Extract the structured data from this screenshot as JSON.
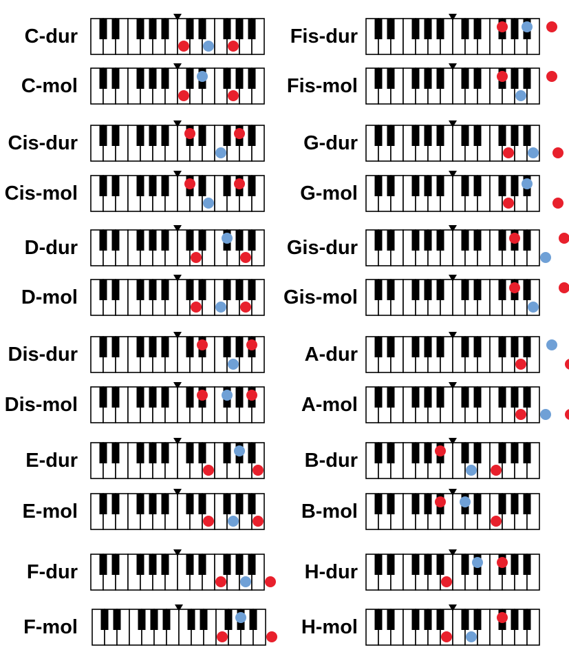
{
  "title": "",
  "colors": {
    "root_fifth": "#e8202c",
    "third": "#6fa0d6",
    "white_key": "#ffffff",
    "black_key": "#000000",
    "outline": "#000000"
  },
  "keyboard": {
    "white_keys": [
      "C",
      "D",
      "E",
      "F",
      "G",
      "A",
      "H",
      "C",
      "D",
      "E",
      "F",
      "G",
      "A",
      "H"
    ],
    "marker_icon": "middle-c-triangle-icon",
    "middle_c_index": 7
  },
  "chords": [
    {
      "label": "C-dur",
      "notes": [
        {
          "key": "C1",
          "role": "root"
        },
        {
          "key": "E1",
          "role": "third"
        },
        {
          "key": "G1",
          "role": "fifth"
        }
      ]
    },
    {
      "label": "C-mol",
      "notes": [
        {
          "key": "C1",
          "role": "root"
        },
        {
          "key": "Dis1",
          "role": "third"
        },
        {
          "key": "G1",
          "role": "fifth"
        }
      ]
    },
    {
      "label": "Cis-dur",
      "notes": [
        {
          "key": "Cis1",
          "role": "root"
        },
        {
          "key": "F1",
          "role": "third"
        },
        {
          "key": "Gis1",
          "role": "fifth"
        }
      ]
    },
    {
      "label": "Cis-mol",
      "notes": [
        {
          "key": "Cis1",
          "role": "root"
        },
        {
          "key": "E1",
          "role": "third"
        },
        {
          "key": "Gis1",
          "role": "fifth"
        }
      ]
    },
    {
      "label": "D-dur",
      "notes": [
        {
          "key": "D1",
          "role": "root"
        },
        {
          "key": "Fis1",
          "role": "third"
        },
        {
          "key": "A1",
          "role": "fifth"
        }
      ]
    },
    {
      "label": "D-mol",
      "notes": [
        {
          "key": "D1",
          "role": "root"
        },
        {
          "key": "F1",
          "role": "third"
        },
        {
          "key": "A1",
          "role": "fifth"
        }
      ]
    },
    {
      "label": "Dis-dur",
      "notes": [
        {
          "key": "Dis1",
          "role": "root"
        },
        {
          "key": "G1",
          "role": "third"
        },
        {
          "key": "Ais1",
          "role": "fifth"
        }
      ]
    },
    {
      "label": "Dis-mol",
      "notes": [
        {
          "key": "Dis1",
          "role": "root"
        },
        {
          "key": "Fis1",
          "role": "third"
        },
        {
          "key": "Ais1",
          "role": "fifth"
        }
      ]
    },
    {
      "label": "E-dur",
      "notes": [
        {
          "key": "E1",
          "role": "root"
        },
        {
          "key": "Gis1",
          "role": "third"
        },
        {
          "key": "H1",
          "role": "fifth"
        }
      ]
    },
    {
      "label": "E-mol",
      "notes": [
        {
          "key": "E1",
          "role": "root"
        },
        {
          "key": "G1",
          "role": "third"
        },
        {
          "key": "H1",
          "role": "fifth"
        }
      ]
    },
    {
      "label": "F-dur",
      "notes": [
        {
          "key": "F1",
          "role": "root"
        },
        {
          "key": "A1",
          "role": "third"
        },
        {
          "key": "C2",
          "role": "fifth"
        }
      ]
    },
    {
      "label": "F-mol",
      "notes": [
        {
          "key": "F1",
          "role": "root"
        },
        {
          "key": "Gis1",
          "role": "third"
        },
        {
          "key": "C2",
          "role": "fifth"
        }
      ]
    },
    {
      "label": "Fis-dur",
      "notes": [
        {
          "key": "Fis1",
          "role": "root"
        },
        {
          "key": "Ais1",
          "role": "third"
        },
        {
          "key": "Cis2",
          "role": "fifth"
        }
      ]
    },
    {
      "label": "Fis-mol",
      "notes": [
        {
          "key": "Fis1",
          "role": "root"
        },
        {
          "key": "A1",
          "role": "third"
        },
        {
          "key": "Cis2",
          "role": "fifth"
        }
      ]
    },
    {
      "label": "G-dur",
      "notes": [
        {
          "key": "G1",
          "role": "root"
        },
        {
          "key": "H1",
          "role": "third"
        },
        {
          "key": "D2",
          "role": "fifth"
        }
      ]
    },
    {
      "label": "G-mol",
      "notes": [
        {
          "key": "G1",
          "role": "root"
        },
        {
          "key": "Ais1",
          "role": "third"
        },
        {
          "key": "D2",
          "role": "fifth"
        }
      ]
    },
    {
      "label": "Gis-dur",
      "notes": [
        {
          "key": "Gis1",
          "role": "root"
        },
        {
          "key": "C2",
          "role": "third"
        },
        {
          "key": "Dis2",
          "role": "fifth"
        }
      ]
    },
    {
      "label": "Gis-mol",
      "notes": [
        {
          "key": "Gis1",
          "role": "root"
        },
        {
          "key": "H1",
          "role": "third"
        },
        {
          "key": "Dis2",
          "role": "fifth"
        }
      ]
    },
    {
      "label": "A-dur",
      "notes": [
        {
          "key": "A1",
          "role": "root"
        },
        {
          "key": "Cis2",
          "role": "third"
        },
        {
          "key": "E2",
          "role": "fifth"
        }
      ]
    },
    {
      "label": "A-mol",
      "notes": [
        {
          "key": "A1",
          "role": "root"
        },
        {
          "key": "C2",
          "role": "third"
        },
        {
          "key": "E2",
          "role": "fifth"
        }
      ]
    },
    {
      "label": "B-dur",
      "notes": [
        {
          "key": "Ais0",
          "role": "root"
        },
        {
          "key": "D1",
          "role": "third"
        },
        {
          "key": "F1",
          "role": "fifth"
        }
      ]
    },
    {
      "label": "B-mol",
      "notes": [
        {
          "key": "Ais0",
          "role": "root"
        },
        {
          "key": "Cis1",
          "role": "third"
        },
        {
          "key": "F1",
          "role": "fifth"
        }
      ]
    },
    {
      "label": "H-dur",
      "notes": [
        {
          "key": "H0",
          "role": "root"
        },
        {
          "key": "Dis1",
          "role": "third"
        },
        {
          "key": "Fis1",
          "role": "fifth"
        }
      ]
    },
    {
      "label": "H-mol",
      "notes": [
        {
          "key": "H0",
          "role": "root"
        },
        {
          "key": "D1",
          "role": "third"
        },
        {
          "key": "Fis1",
          "role": "fifth"
        }
      ]
    }
  ]
}
